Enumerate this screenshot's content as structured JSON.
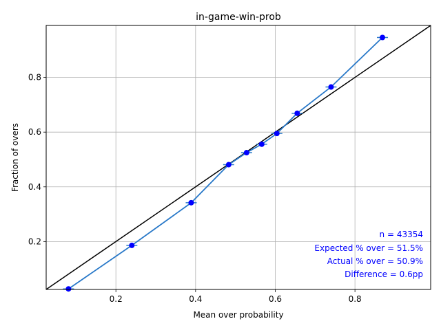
{
  "chart_data": {
    "type": "scatter",
    "title": "in-game-win-prob",
    "xlabel": "Mean over probability",
    "ylabel": "Fraction of overs",
    "xlim": [
      0.025,
      0.99
    ],
    "ylim": [
      0.025,
      0.99
    ],
    "xticks": [
      0.2,
      0.4,
      0.6,
      0.8
    ],
    "xtick_labels": [
      "0.2",
      "0.4",
      "0.6",
      "0.8"
    ],
    "yticks": [
      0.2,
      0.4,
      0.6,
      0.8
    ],
    "ytick_labels": [
      "0.2",
      "0.4",
      "0.6",
      "0.8"
    ],
    "grid": true,
    "reference_line": [
      [
        0.0,
        0.0
      ],
      [
        1.0,
        1.0
      ]
    ],
    "series": [
      {
        "x": [
          0.081,
          0.24,
          0.389,
          0.483,
          0.528,
          0.566,
          0.604,
          0.655,
          0.74,
          0.869
        ],
        "y": [
          0.027,
          0.186,
          0.342,
          0.481,
          0.525,
          0.556,
          0.595,
          0.669,
          0.765,
          0.946
        ],
        "line_color": "#2878c8",
        "marker_color": "#0000ff"
      }
    ],
    "annotations": [
      "n = 43354",
      "Expected % over = 51.5%",
      "Actual % over = 50.9%",
      "Difference = 0.6pp"
    ],
    "annotation_color": "#0000ff"
  }
}
